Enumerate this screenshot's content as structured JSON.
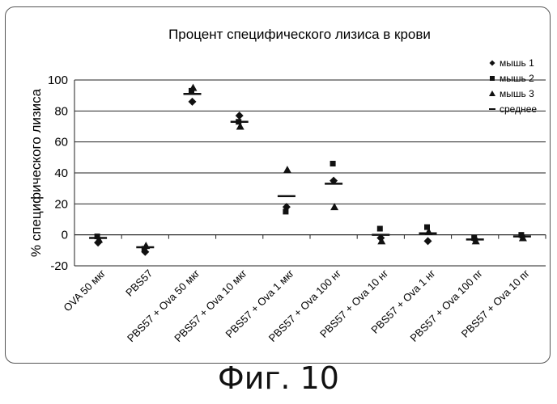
{
  "chart_data": {
    "type": "scatter",
    "title": "Процент специфического лизиса в крови",
    "ylabel": "% специфического лизиса",
    "xlabel": "",
    "ylim": [
      -20,
      100
    ],
    "yticks": [
      "-20",
      "0",
      "20",
      "40",
      "60",
      "80",
      "100"
    ],
    "grid": true,
    "legend_position": "top-right",
    "categories": [
      "OVA 50 мкг",
      "PBS57",
      "PBS57 + Ova 50 мкг",
      "PBS57 + Ova 10 мкг",
      "PBS57 + Ova 1 мкг",
      "PBS57 + Ova 100 нг",
      "PBS57 + Ova 10 нг",
      "PBS57 + Ova 1 нг",
      "PBS57 + Ova 100 пг",
      "PBS57 + Ova 10 пг"
    ],
    "series": [
      {
        "name": "мышь  1",
        "marker": "diamond",
        "values": [
          -5,
          -11,
          86,
          77,
          18,
          35,
          -2,
          -4,
          -3,
          -1
        ]
      },
      {
        "name": "мышь  2",
        "marker": "square",
        "values": [
          -1,
          -9,
          93,
          73,
          15,
          46,
          4,
          5,
          -2,
          0
        ]
      },
      {
        "name": "мышь  3",
        "marker": "triangle",
        "values": [
          -3,
          -7,
          95,
          70,
          42,
          18,
          -4,
          2,
          -4,
          -2
        ]
      },
      {
        "name": "среднее",
        "marker": "dash",
        "values": [
          -2,
          -8,
          91,
          73,
          25,
          33,
          0,
          1,
          -3,
          -1
        ]
      }
    ]
  },
  "caption": "Фиг. 10"
}
